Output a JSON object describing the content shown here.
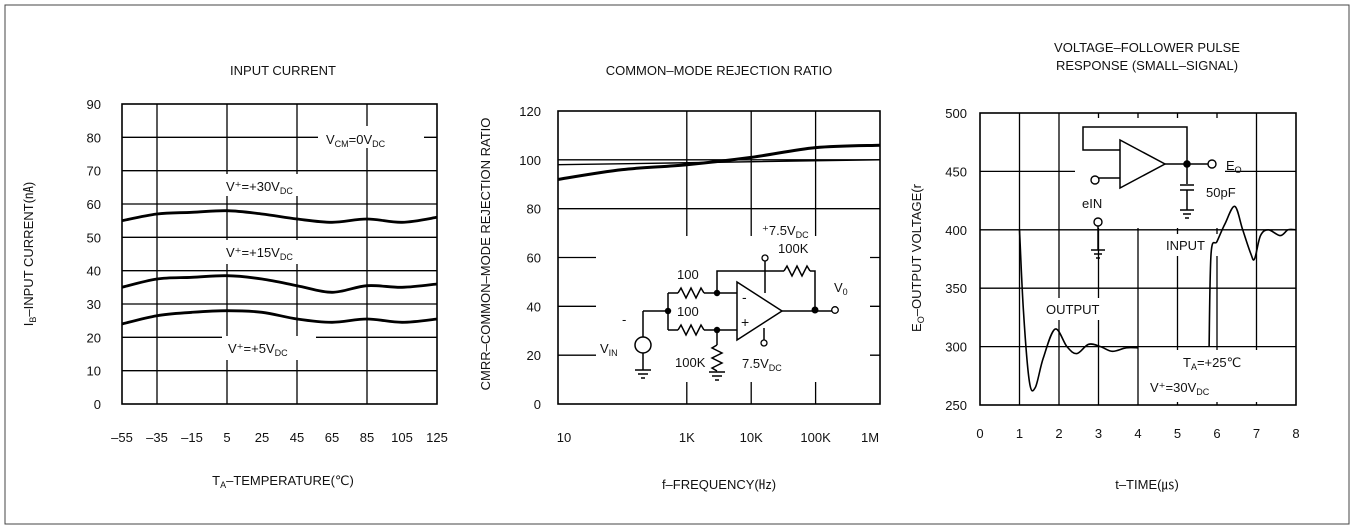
{
  "chart_data": [
    {
      "type": "line",
      "title": "INPUT CURRENT",
      "xlabel_main": "T",
      "xlabel_sub": "A",
      "xlabel_rest": "–TEMPERATURE(℃)",
      "ylabel_main": "I",
      "ylabel_sub": "B",
      "ylabel_rest": "–INPUT CURRENT(㎁)",
      "x_ticks": [
        "–55",
        "–35",
        "–15",
        "5",
        "25",
        "45",
        "65",
        "85",
        "105",
        "125"
      ],
      "x_tick_values": [
        -55,
        -35,
        -15,
        5,
        25,
        45,
        65,
        85,
        105,
        125
      ],
      "y_ticks": [
        "90",
        "80",
        "70",
        "60",
        "50",
        "40",
        "30",
        "20",
        "10",
        "0"
      ],
      "y_tick_values": [
        90,
        80,
        70,
        60,
        50,
        40,
        30,
        20,
        10,
        0
      ],
      "xlim": [
        -55,
        125
      ],
      "ylim": [
        0,
        90
      ],
      "grid": true,
      "series": [
        {
          "name": "V⁺=+30V_DC",
          "x": [
            -55,
            -35,
            -15,
            5,
            25,
            45,
            65,
            85,
            105,
            125
          ],
          "y": [
            55,
            57,
            57.5,
            58,
            57,
            55.5,
            54.5,
            55.5,
            54.5,
            56
          ]
        },
        {
          "name": "V⁺=+15V_DC",
          "x": [
            -55,
            -35,
            -15,
            5,
            25,
            45,
            65,
            85,
            105,
            125
          ],
          "y": [
            35,
            37.5,
            38,
            38.5,
            37.5,
            35.5,
            33.5,
            35.5,
            35,
            36
          ]
        },
        {
          "name": "V⁺=+5V_DC",
          "x": [
            -55,
            -35,
            -15,
            5,
            25,
            45,
            65,
            85,
            105,
            125
          ],
          "y": [
            24,
            26.5,
            27.5,
            28,
            27.5,
            25.5,
            24.5,
            25.5,
            24.5,
            25.5
          ]
        }
      ],
      "annotations": [
        {
          "main": "V",
          "sub": "CM",
          "rest": "=0V",
          "sub2": "DC"
        },
        {
          "main": "V⁺=+30V",
          "sub": "DC"
        },
        {
          "main": "V⁺=+15V",
          "sub": "DC"
        },
        {
          "main": "V⁺=+5V",
          "sub": "DC"
        }
      ]
    },
    {
      "type": "line",
      "title": "COMMON–MODE REJECTION RATIO",
      "xlabel": "f–FREQUENCY(㎐)",
      "ylabel": "CMRR–COMMON–MODE REJECTION RATIO",
      "x_ticks": [
        "10",
        "1K",
        "10K",
        "100K",
        "1M"
      ],
      "x_tick_values": [
        10,
        1000,
        10000,
        100000,
        1000000
      ],
      "y_ticks": [
        "120",
        "100",
        "80",
        "60",
        "40",
        "20",
        "0"
      ],
      "y_tick_values": [
        120,
        100,
        80,
        60,
        40,
        20,
        0
      ],
      "x_scale": "log",
      "xlim": [
        10,
        1000000
      ],
      "ylim": [
        0,
        120
      ],
      "grid": true,
      "series": [
        {
          "x": [
            10,
            100,
            1000,
            10000,
            100000,
            1000000
          ],
          "y": [
            92,
            96,
            98,
            101,
            105,
            106
          ]
        },
        {
          "x": [
            10,
            1000000
          ],
          "y": [
            98,
            100
          ]
        }
      ],
      "circuit_labels": {
        "v_plus_main": "⁺7.5V",
        "v_plus_sub": "DC",
        "r_feedback": "100K",
        "r_top": "100",
        "r_mid": "100",
        "r_bottom": "100K",
        "v_minus_main": "7.5V",
        "v_minus_sub": "DC",
        "vin_main": "V",
        "vin_sub": "IN",
        "vo_main": "V",
        "vo_sub": "0",
        "minus_sign": "-",
        "opamp_minus": "-",
        "opamp_plus": "+"
      }
    },
    {
      "type": "line",
      "title_line1": "VOLTAGE–FOLLOWER PULSE",
      "title_line2": "RESPONSE (SMALL–SIGNAL)",
      "xlabel": "t–TIME(㎲)",
      "ylabel_main": "E",
      "ylabel_sub": "O",
      "ylabel_rest": "–OUTPUT VOLTAGE(r",
      "x_ticks": [
        "0",
        "1",
        "2",
        "3",
        "4",
        "5",
        "6",
        "7",
        "8"
      ],
      "x_tick_values": [
        0,
        1,
        2,
        3,
        4,
        5,
        6,
        7,
        8
      ],
      "y_ticks": [
        "500",
        "450",
        "400",
        "350",
        "300",
        "250"
      ],
      "y_tick_values": [
        500,
        450,
        400,
        350,
        300,
        250
      ],
      "xlim": [
        0,
        8
      ],
      "ylim": [
        250,
        500
      ],
      "grid": true,
      "series": [
        {
          "name": "OUTPUT",
          "x": [
            1.0,
            1.1,
            1.25,
            1.4,
            1.6,
            1.9,
            2.2,
            2.45,
            2.75,
            3.05,
            3.35,
            3.7,
            4.0
          ],
          "y": [
            400,
            330,
            270,
            265,
            290,
            315,
            300,
            294,
            302,
            300,
            296,
            299,
            299
          ]
        },
        {
          "name": "INPUT",
          "x": [
            5.8,
            5.85,
            6.0,
            6.2,
            6.45,
            6.65,
            6.85,
            6.95,
            7.1,
            7.3,
            7.6,
            7.8,
            8.0
          ],
          "y": [
            300,
            380,
            390,
            405,
            420,
            400,
            380,
            375,
            395,
            400,
            395,
            400,
            400
          ]
        }
      ],
      "annotations": {
        "output": "OUTPUT",
        "input": "INPUT",
        "ta_main": "T",
        "ta_sub": "A",
        "ta_rest": "=+25℃",
        "v_main": "V⁺=30V",
        "v_sub": "DC",
        "ein": "eIN",
        "eo_main": "E",
        "eo_sub": "O",
        "cap": "50pF"
      }
    }
  ]
}
